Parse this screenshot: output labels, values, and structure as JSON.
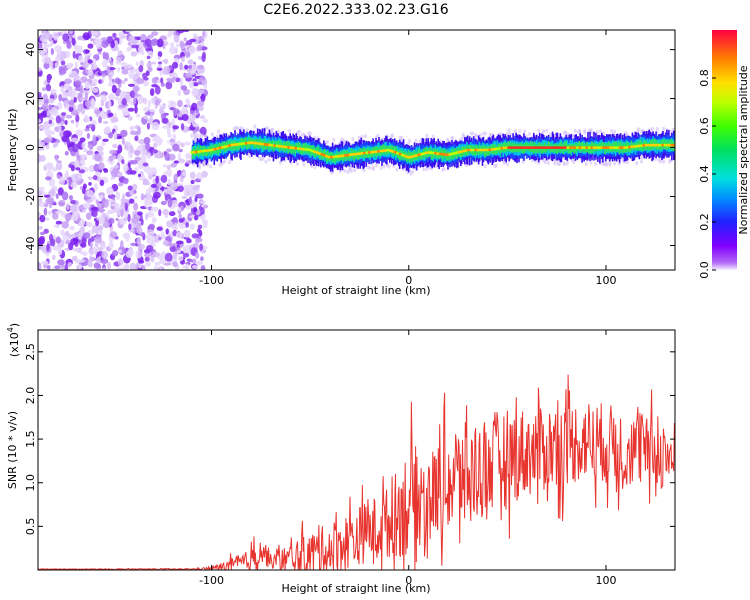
{
  "title": "C2E6.2022.333.02.23.G16",
  "chart_data": [
    {
      "type": "heatmap",
      "xlabel": "Height of straight line (km)",
      "ylabel": "Frequency (Hz)",
      "xlim": [
        -188,
        135
      ],
      "ylim": [
        -50,
        48
      ],
      "xticks": [
        -100,
        0,
        100
      ],
      "xtick_labels": [
        "-100",
        "0",
        "100"
      ],
      "yticks": [
        -40,
        -20,
        0,
        20,
        40
      ],
      "ytick_labels": [
        "-40",
        "-20",
        "0",
        "20",
        "40"
      ],
      "noise_region": {
        "x_from": -188,
        "x_to": -105
      },
      "ridge": {
        "x": [
          -110,
          -100,
          -90,
          -80,
          -70,
          -60,
          -50,
          -40,
          -30,
          -20,
          -10,
          0,
          10,
          20,
          30,
          40,
          50,
          60,
          70,
          80,
          90,
          100,
          110,
          120,
          135
        ],
        "y": [
          -2,
          -1,
          1,
          2,
          1,
          0,
          -1,
          -4,
          -3,
          -2,
          -1,
          -4,
          -2,
          -3,
          -1,
          -1,
          0,
          0,
          0,
          0,
          0,
          0,
          0,
          1,
          1
        ]
      },
      "colorbar": {
        "label": "Normalized spectral amplitude",
        "range": [
          0.0,
          1.0
        ],
        "ticks": [
          0.0,
          0.2,
          0.4,
          0.6,
          0.8
        ],
        "tick_labels": [
          "0.0",
          "0.2",
          "0.4",
          "0.6",
          "0.8"
        ]
      }
    },
    {
      "type": "line",
      "xlabel": "Height of straight line (km)",
      "ylabel": "SNR (10 * v/v)",
      "yscale_label": "(x10",
      "yscale_exp": "4",
      "yscale_close": ")",
      "xlim": [
        -188,
        135
      ],
      "ylim": [
        0,
        2.75
      ],
      "xticks": [
        -100,
        0,
        100
      ],
      "xtick_labels": [
        "-100",
        "0",
        "100"
      ],
      "yticks": [
        0.5,
        1.0,
        1.5,
        2.0,
        2.5
      ],
      "ytick_labels": [
        "0.5",
        "1.0",
        "1.5",
        "2.0",
        "2.5"
      ],
      "color": "#e8342e",
      "envelope": {
        "x": [
          -188,
          -110,
          -100,
          -90,
          -80,
          -75,
          -70,
          -60,
          -50,
          -40,
          -30,
          -20,
          -10,
          0,
          10,
          20,
          30,
          40,
          50,
          60,
          70,
          80,
          90,
          100,
          110,
          120,
          135
        ],
        "base": [
          0.01,
          0.01,
          0.02,
          0.05,
          0.1,
          0.25,
          0.1,
          0.12,
          0.18,
          0.25,
          0.35,
          0.45,
          0.55,
          0.8,
          0.85,
          1.0,
          1.1,
          1.2,
          1.3,
          1.35,
          1.4,
          1.45,
          1.5,
          1.45,
          1.4,
          1.35,
          1.3
        ],
        "amp": [
          0.005,
          0.01,
          0.03,
          0.15,
          0.25,
          0.35,
          0.15,
          0.35,
          0.45,
          0.55,
          0.6,
          0.65,
          0.75,
          1.2,
          0.9,
          1.1,
          1.1,
          1.1,
          1.0,
          0.95,
          0.9,
          0.9,
          0.85,
          0.85,
          0.8,
          0.75,
          0.75
        ]
      }
    }
  ]
}
